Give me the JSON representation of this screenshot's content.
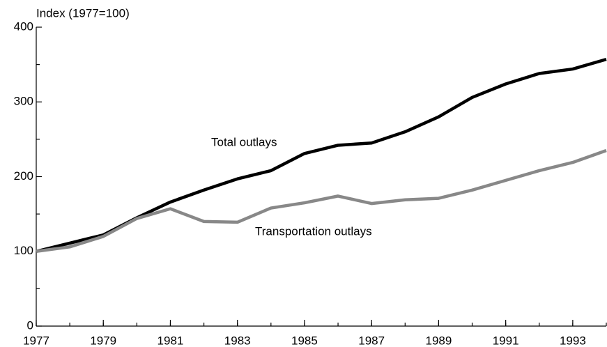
{
  "chart_data": {
    "type": "line",
    "ylabel": "Index (1977=100)",
    "x": [
      1977,
      1978,
      1979,
      1980,
      1981,
      1982,
      1983,
      1984,
      1985,
      1986,
      1987,
      1988,
      1989,
      1990,
      1991,
      1992,
      1993,
      1994
    ],
    "series": [
      {
        "name": "Total outlays",
        "color": "#000000",
        "values": [
          100,
          111,
          122,
          145,
          166,
          182,
          197,
          208,
          231,
          242,
          245,
          260,
          280,
          306,
          324,
          338,
          344,
          357
        ]
      },
      {
        "name": "Transportation outlays",
        "color": "#888888",
        "values": [
          100,
          106,
          120,
          144,
          157,
          140,
          139,
          158,
          165,
          174,
          164,
          169,
          171,
          182,
          195,
          208,
          219,
          235
        ]
      }
    ],
    "xlim": [
      1977,
      1994
    ],
    "xticks": [
      1977,
      1979,
      1981,
      1983,
      1985,
      1987,
      1989,
      1991,
      1993
    ],
    "ylim": [
      0,
      400
    ],
    "yticks": [
      0,
      100,
      200,
      300,
      400
    ],
    "yminorticks": [
      50,
      150,
      250,
      350
    ],
    "grid": false
  }
}
